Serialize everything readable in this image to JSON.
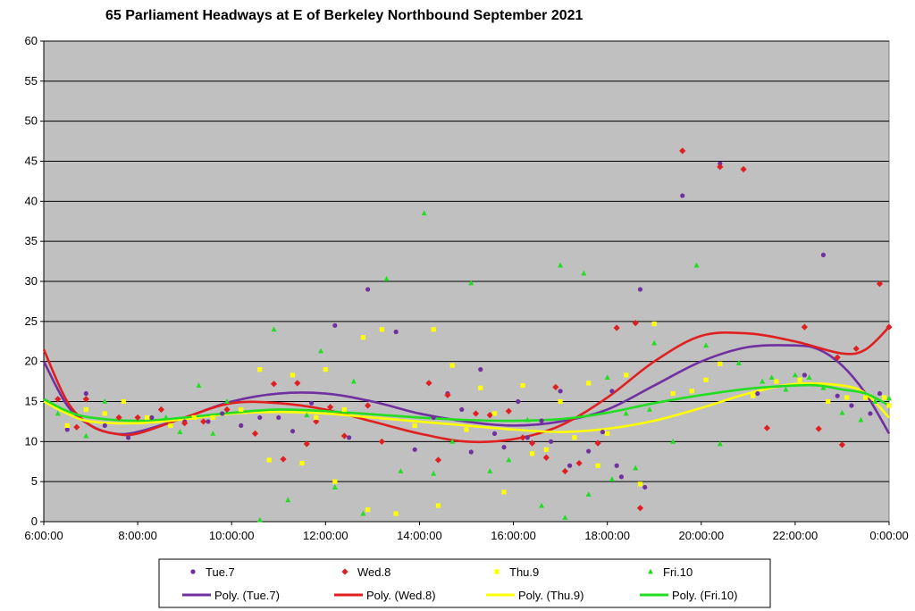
{
  "chart_data": {
    "type": "scatter",
    "title": "65 Parliament Headways at E of Berkeley Northbound September 2021",
    "xlabel": "",
    "ylabel": "",
    "x_unit": "hours after 6:00",
    "xlim": [
      0,
      18
    ],
    "ylim": [
      0,
      60
    ],
    "x_ticks": [
      "6:00:00",
      "8:00:00",
      "10:00:00",
      "12:00:00",
      "14:00:00",
      "16:00:00",
      "18:00:00",
      "20:00:00",
      "22:00:00",
      "0:00:00"
    ],
    "y_ticks": [
      "0",
      "5",
      "10",
      "15",
      "20",
      "25",
      "30",
      "35",
      "40",
      "45",
      "50",
      "55",
      "60"
    ],
    "grid": "horizontal",
    "plot_background": "#c0c0c0",
    "legend_position": "bottom",
    "series": [
      {
        "name": "Tue.7",
        "color": "#7030a0",
        "marker": "circle",
        "points": [
          [
            0.5,
            11.5
          ],
          [
            0.9,
            16
          ],
          [
            1.3,
            12
          ],
          [
            1.8,
            10.5
          ],
          [
            2.3,
            13
          ],
          [
            3,
            12.5
          ],
          [
            3.5,
            12.5
          ],
          [
            3.8,
            13.5
          ],
          [
            4.2,
            12
          ],
          [
            4.6,
            13
          ],
          [
            5,
            13
          ],
          [
            5.3,
            11.3
          ],
          [
            5.7,
            14.8
          ],
          [
            6.2,
            24.5
          ],
          [
            6.5,
            10.5
          ],
          [
            6.9,
            29
          ],
          [
            7.5,
            23.7
          ],
          [
            7.9,
            9
          ],
          [
            8.3,
            13
          ],
          [
            8.6,
            16
          ],
          [
            8.9,
            14
          ],
          [
            9.1,
            8.7
          ],
          [
            9.3,
            19
          ],
          [
            9.6,
            11
          ],
          [
            9.8,
            9.3
          ],
          [
            10.1,
            15
          ],
          [
            10.3,
            10.5
          ],
          [
            10.6,
            12.6
          ],
          [
            10.8,
            10
          ],
          [
            11,
            16.3
          ],
          [
            11.2,
            7
          ],
          [
            11.6,
            8.8
          ],
          [
            11.9,
            11.2
          ],
          [
            12.1,
            16.3
          ],
          [
            12.2,
            7
          ],
          [
            12.3,
            5.6
          ],
          [
            12.7,
            29
          ],
          [
            12.8,
            4.3
          ],
          [
            13.6,
            40.7
          ],
          [
            14.4,
            44.7
          ],
          [
            15.2,
            16
          ],
          [
            16.2,
            18.3
          ],
          [
            16.6,
            33.3
          ],
          [
            16.9,
            15.7
          ],
          [
            17.2,
            14.5
          ],
          [
            17.6,
            13.5
          ],
          [
            17.8,
            16
          ]
        ]
      },
      {
        "name": "Wed.8",
        "color": "#e02020",
        "marker": "diamond",
        "points": [
          [
            0.3,
            15.3
          ],
          [
            0.7,
            11.8
          ],
          [
            0.9,
            15.3
          ],
          [
            1.6,
            13
          ],
          [
            2,
            13
          ],
          [
            2.5,
            14
          ],
          [
            3,
            12.3
          ],
          [
            3.4,
            12.5
          ],
          [
            3.9,
            14
          ],
          [
            4.5,
            11
          ],
          [
            4.9,
            17.2
          ],
          [
            5.1,
            7.8
          ],
          [
            5.4,
            17.3
          ],
          [
            5.6,
            9.7
          ],
          [
            5.8,
            12.5
          ],
          [
            6.1,
            14.3
          ],
          [
            6.4,
            10.7
          ],
          [
            6.9,
            14.5
          ],
          [
            7.2,
            10
          ],
          [
            8.2,
            17.3
          ],
          [
            8.4,
            7.7
          ],
          [
            8.6,
            15.8
          ],
          [
            9.2,
            13.5
          ],
          [
            9.5,
            13.3
          ],
          [
            9.9,
            13.8
          ],
          [
            10.2,
            10.5
          ],
          [
            10.4,
            9.8
          ],
          [
            10.7,
            8
          ],
          [
            10.9,
            16.8
          ],
          [
            11.1,
            6.3
          ],
          [
            11.4,
            7.3
          ],
          [
            11.8,
            9.8
          ],
          [
            12.2,
            24.2
          ],
          [
            12.6,
            24.8
          ],
          [
            12.7,
            1.7
          ],
          [
            13.6,
            46.3
          ],
          [
            14.4,
            44.3
          ],
          [
            14.9,
            44
          ],
          [
            15.4,
            11.7
          ],
          [
            16.2,
            24.3
          ],
          [
            16.5,
            11.6
          ],
          [
            17,
            9.6
          ],
          [
            17.3,
            21.6
          ],
          [
            17.8,
            29.7
          ],
          [
            18,
            24.3
          ],
          [
            16.9,
            20.5
          ]
        ]
      },
      {
        "name": "Thu.9",
        "color": "#ffff00",
        "marker": "square",
        "points": [
          [
            0.5,
            12
          ],
          [
            0.9,
            14
          ],
          [
            1.3,
            13.5
          ],
          [
            1.7,
            15
          ],
          [
            2.2,
            13
          ],
          [
            2.7,
            12
          ],
          [
            3.2,
            13
          ],
          [
            3.6,
            13
          ],
          [
            4.2,
            14
          ],
          [
            4.6,
            19
          ],
          [
            4.8,
            7.7
          ],
          [
            5.3,
            18.3
          ],
          [
            5.5,
            7.3
          ],
          [
            5.8,
            13
          ],
          [
            6,
            19
          ],
          [
            6.2,
            5
          ],
          [
            6.4,
            14
          ],
          [
            6.8,
            23
          ],
          [
            6.9,
            1.5
          ],
          [
            7.2,
            24
          ],
          [
            7.5,
            1
          ],
          [
            7.9,
            12
          ],
          [
            8.3,
            24
          ],
          [
            8.4,
            2
          ],
          [
            8.7,
            19.5
          ],
          [
            9,
            11.5
          ],
          [
            9.3,
            16.7
          ],
          [
            9.6,
            13.5
          ],
          [
            9.8,
            3.7
          ],
          [
            10.2,
            17
          ],
          [
            10.4,
            8.5
          ],
          [
            10.7,
            9
          ],
          [
            11,
            15
          ],
          [
            11.3,
            10.5
          ],
          [
            11.6,
            17.3
          ],
          [
            11.8,
            7
          ],
          [
            12,
            11
          ],
          [
            12.4,
            18.3
          ],
          [
            12.7,
            4.7
          ],
          [
            13,
            24.7
          ],
          [
            13.4,
            16
          ],
          [
            13.8,
            16.3
          ],
          [
            14.1,
            17.7
          ],
          [
            14.4,
            19.7
          ],
          [
            15.1,
            15.7
          ],
          [
            15.6,
            17.5
          ],
          [
            16.1,
            17.7
          ],
          [
            16.7,
            15
          ],
          [
            17.1,
            15.5
          ],
          [
            17.5,
            15.5
          ],
          [
            17.9,
            15.5
          ],
          [
            18,
            14.5
          ]
        ]
      },
      {
        "name": "Fri.10",
        "color": "#22dd22",
        "marker": "triangle",
        "points": [
          [
            0.3,
            13.5
          ],
          [
            0.9,
            10.7
          ],
          [
            1.3,
            15
          ],
          [
            2.6,
            13
          ],
          [
            2.9,
            11.2
          ],
          [
            3.3,
            17
          ],
          [
            3.6,
            11
          ],
          [
            3.9,
            15
          ],
          [
            4.6,
            0.2
          ],
          [
            4.9,
            24
          ],
          [
            5.2,
            2.7
          ],
          [
            5.6,
            13.3
          ],
          [
            5.9,
            21.3
          ],
          [
            6.2,
            4.3
          ],
          [
            6.6,
            17.5
          ],
          [
            6.8,
            1
          ],
          [
            7.3,
            30.3
          ],
          [
            7.6,
            6.3
          ],
          [
            8.1,
            38.5
          ],
          [
            8.3,
            6
          ],
          [
            8.7,
            10
          ],
          [
            9.1,
            29.8
          ],
          [
            9.5,
            6.3
          ],
          [
            9.9,
            7.7
          ],
          [
            10.3,
            12.7
          ],
          [
            10.6,
            2
          ],
          [
            11,
            32
          ],
          [
            11.1,
            0.5
          ],
          [
            11.5,
            31
          ],
          [
            11.6,
            3.4
          ],
          [
            12,
            18
          ],
          [
            12.1,
            5.3
          ],
          [
            12.4,
            13.5
          ],
          [
            12.6,
            6.7
          ],
          [
            13,
            22.3
          ],
          [
            13.4,
            10
          ],
          [
            13.9,
            32
          ],
          [
            14.1,
            22
          ],
          [
            14.4,
            9.7
          ],
          [
            14.8,
            19.8
          ],
          [
            15.3,
            17.5
          ],
          [
            15.8,
            16.5
          ],
          [
            16,
            18.3
          ],
          [
            16.3,
            18
          ],
          [
            16.6,
            16.7
          ],
          [
            17,
            13.6
          ],
          [
            17.4,
            12.7
          ],
          [
            17.7,
            15
          ],
          [
            18,
            15.4
          ],
          [
            12.9,
            14
          ],
          [
            15.5,
            18
          ]
        ]
      }
    ],
    "trendlines": [
      {
        "name": "Poly. (Tue.7)",
        "color": "#7030a0",
        "points": [
          [
            0,
            20
          ],
          [
            0.5,
            14.5
          ],
          [
            1,
            12
          ],
          [
            1.5,
            11
          ],
          [
            2,
            11.2
          ],
          [
            3,
            13
          ],
          [
            4,
            15
          ],
          [
            5,
            16
          ],
          [
            6,
            16
          ],
          [
            7,
            15
          ],
          [
            8,
            13.5
          ],
          [
            9,
            12.5
          ],
          [
            10,
            12
          ],
          [
            11,
            12.5
          ],
          [
            12,
            14
          ],
          [
            13,
            17
          ],
          [
            14,
            20
          ],
          [
            15,
            21.8
          ],
          [
            16,
            22
          ],
          [
            16.5,
            21.5
          ],
          [
            17,
            19.5
          ],
          [
            17.5,
            16
          ],
          [
            18,
            11
          ]
        ]
      },
      {
        "name": "Poly. (Wed.8)",
        "color": "#e02020",
        "points": [
          [
            0,
            21.5
          ],
          [
            0.5,
            15
          ],
          [
            1,
            12
          ],
          [
            1.5,
            11
          ],
          [
            2,
            11
          ],
          [
            3,
            13
          ],
          [
            4,
            14.8
          ],
          [
            5,
            14.8
          ],
          [
            6,
            14
          ],
          [
            7,
            12.5
          ],
          [
            8,
            11
          ],
          [
            9,
            10
          ],
          [
            10,
            10.3
          ],
          [
            11,
            12
          ],
          [
            12,
            15.5
          ],
          [
            13,
            20
          ],
          [
            14,
            23.2
          ],
          [
            15,
            23.5
          ],
          [
            16,
            22.5
          ],
          [
            17,
            21
          ],
          [
            17.5,
            21.5
          ],
          [
            18,
            24.3
          ]
        ]
      },
      {
        "name": "Poly. (Thu.9)",
        "color": "#ffff00",
        "points": [
          [
            0,
            15
          ],
          [
            0.5,
            13.5
          ],
          [
            1,
            12.5
          ],
          [
            2,
            12.3
          ],
          [
            3,
            12.8
          ],
          [
            4,
            13.5
          ],
          [
            5,
            13.7
          ],
          [
            6,
            13.5
          ],
          [
            7,
            13
          ],
          [
            8,
            12.5
          ],
          [
            9,
            12
          ],
          [
            10,
            11.5
          ],
          [
            11,
            11.2
          ],
          [
            12,
            11.6
          ],
          [
            13,
            12.6
          ],
          [
            14,
            14.2
          ],
          [
            15,
            16
          ],
          [
            16,
            17.2
          ],
          [
            17,
            17
          ],
          [
            17.5,
            16
          ],
          [
            18,
            13
          ]
        ]
      },
      {
        "name": "Poly. (Fri.10)",
        "color": "#22dd22",
        "points": [
          [
            0,
            15.3
          ],
          [
            0.5,
            13.8
          ],
          [
            1,
            13
          ],
          [
            2,
            12.6
          ],
          [
            3,
            13
          ],
          [
            4,
            13.6
          ],
          [
            5,
            14
          ],
          [
            6,
            13.8
          ],
          [
            7,
            13.4
          ],
          [
            8,
            13
          ],
          [
            9,
            12.7
          ],
          [
            10,
            12.6
          ],
          [
            11,
            12.8
          ],
          [
            12,
            13.6
          ],
          [
            13,
            14.8
          ],
          [
            14,
            15.8
          ],
          [
            15,
            16.6
          ],
          [
            16,
            17
          ],
          [
            16.5,
            17
          ],
          [
            17,
            16.5
          ],
          [
            17.5,
            16
          ],
          [
            18,
            14.5
          ]
        ]
      }
    ],
    "legend": {
      "markers": [
        "Tue.7",
        "Wed.8",
        "Thu.9",
        "Fri.10"
      ],
      "lines": [
        "Poly. (Tue.7)",
        "Poly. (Wed.8)",
        "Poly. (Thu.9)",
        "Poly. (Fri.10)"
      ]
    }
  }
}
